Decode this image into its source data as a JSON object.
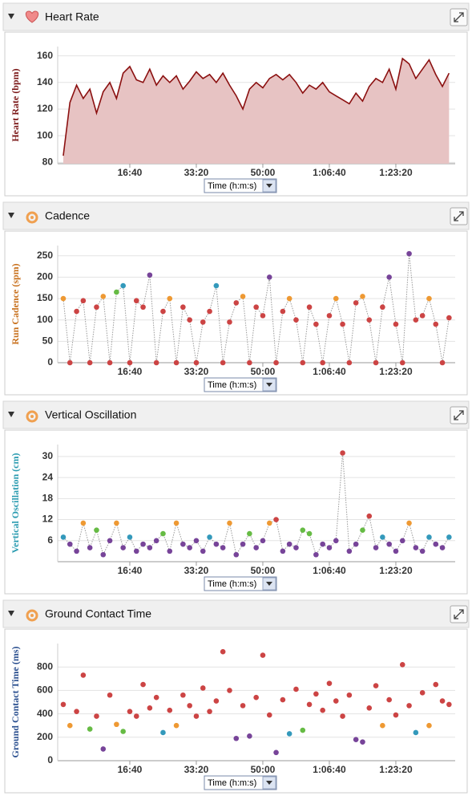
{
  "chart_data": [
    {
      "type": "area",
      "title": "Heart Rate",
      "ylabel": "Heart Rate (bpm)",
      "ylabel_color": "#7a1616",
      "x_selector": "Time (h:m:s)",
      "color": "#8b1010",
      "fill": "#e7c3c3",
      "x": [
        0,
        100,
        200,
        300,
        400,
        500,
        600,
        700,
        800,
        900,
        1000,
        1100,
        1200,
        1300,
        1400,
        1500,
        1600,
        1700,
        1800,
        1900,
        2000,
        2100,
        2200,
        2300,
        2400,
        2500,
        2600,
        2700,
        2800,
        2900,
        3000,
        3100,
        3200,
        3300,
        3400,
        3500,
        3600,
        3700,
        3800,
        3900,
        4000,
        4100,
        4200,
        4300,
        4400,
        4500,
        4600,
        4700,
        4800,
        4900,
        5000,
        5100,
        5200,
        5300,
        5400,
        5500,
        5600,
        5700,
        5800
      ],
      "values": [
        85,
        125,
        138,
        128,
        135,
        117,
        133,
        140,
        128,
        147,
        152,
        142,
        140,
        150,
        138,
        145,
        140,
        145,
        135,
        141,
        148,
        143,
        146,
        140,
        147,
        138,
        130,
        120,
        135,
        140,
        136,
        143,
        146,
        142,
        146,
        140,
        132,
        138,
        135,
        140,
        133,
        130,
        127,
        124,
        132,
        126,
        137,
        143,
        140,
        150,
        135,
        158,
        154,
        143,
        150,
        157,
        146,
        137,
        147
      ],
      "xlim": [
        -84,
        5892
      ],
      "ylim": [
        79,
        167
      ],
      "xticks": [
        {
          "value": 1000,
          "label": "16:40"
        },
        {
          "value": 2000,
          "label": "33:20"
        },
        {
          "value": 3000,
          "label": "50:00"
        },
        {
          "value": 4000,
          "label": "1:06:40"
        },
        {
          "value": 5000,
          "label": "1:23:20"
        }
      ],
      "yticks": [
        80,
        100,
        120,
        140,
        160
      ],
      "grid": true
    },
    {
      "type": "scatter",
      "title": "Cadence",
      "ylabel": "Run Cadence (spm)",
      "ylabel_color": "#c8701c",
      "x_selector": "Time (h:m:s)",
      "connect": true,
      "connector_color": "#999",
      "x": [
        0,
        100,
        200,
        300,
        400,
        500,
        600,
        700,
        800,
        900,
        1000,
        1100,
        1200,
        1300,
        1400,
        1500,
        1600,
        1700,
        1800,
        1900,
        2000,
        2100,
        2200,
        2300,
        2400,
        2500,
        2600,
        2700,
        2800,
        2900,
        3000,
        3100,
        3200,
        3300,
        3400,
        3500,
        3600,
        3700,
        3800,
        3900,
        4000,
        4100,
        4200,
        4300,
        4400,
        4500,
        4600,
        4700,
        4800,
        4900,
        5000,
        5100,
        5200,
        5300,
        5400,
        5500,
        5600,
        5700,
        5800
      ],
      "values": [
        150,
        0,
        120,
        145,
        0,
        130,
        155,
        0,
        165,
        180,
        0,
        145,
        130,
        205,
        0,
        120,
        150,
        0,
        130,
        100,
        0,
        95,
        120,
        180,
        0,
        95,
        140,
        155,
        0,
        130,
        110,
        200,
        0,
        120,
        150,
        100,
        0,
        130,
        90,
        0,
        110,
        150,
        90,
        0,
        140,
        155,
        100,
        0,
        130,
        200,
        90,
        0,
        255,
        100,
        110,
        150,
        90,
        0,
        105
      ],
      "colors": [
        "#e93",
        "#c44",
        "#c44",
        "#c44",
        "#c44",
        "#c44",
        "#e93",
        "#c44",
        "#6b4",
        "#39b",
        "#c44",
        "#c44",
        "#c44",
        "#749",
        "#c44",
        "#c44",
        "#e93",
        "#c44",
        "#c44",
        "#c44",
        "#c44",
        "#c44",
        "#c44",
        "#39b",
        "#c44",
        "#c44",
        "#c44",
        "#e93",
        "#c44",
        "#c44",
        "#c44",
        "#749",
        "#c44",
        "#c44",
        "#e93",
        "#c44",
        "#c44",
        "#c44",
        "#c44",
        "#c44",
        "#c44",
        "#e93",
        "#c44",
        "#c44",
        "#c44",
        "#e93",
        "#c44",
        "#c44",
        "#c44",
        "#749",
        "#c44",
        "#c44",
        "#749",
        "#c44",
        "#c44",
        "#e93",
        "#c44",
        "#c44",
        "#c44"
      ],
      "xlim": [
        -84,
        5892
      ],
      "ylim": [
        0,
        274
      ],
      "xticks": [
        {
          "value": 1000,
          "label": "16:40"
        },
        {
          "value": 2000,
          "label": "33:20"
        },
        {
          "value": 3000,
          "label": "50:00"
        },
        {
          "value": 4000,
          "label": "1:06:40"
        },
        {
          "value": 5000,
          "label": "1:23:20"
        }
      ],
      "yticks": [
        0,
        50,
        100,
        150,
        200,
        250
      ],
      "grid": true
    },
    {
      "type": "scatter",
      "title": "Vertical Oscillation",
      "ylabel": "Vertical Oscillation (cm)",
      "ylabel_color": "#2a9bb0",
      "x_selector": "Time (h:m:s)",
      "connect": true,
      "connector_color": "#999",
      "x": [
        0,
        100,
        200,
        300,
        400,
        500,
        600,
        700,
        800,
        900,
        1000,
        1100,
        1200,
        1300,
        1400,
        1500,
        1600,
        1700,
        1800,
        1900,
        2000,
        2100,
        2200,
        2300,
        2400,
        2500,
        2600,
        2700,
        2800,
        2900,
        3000,
        3100,
        3200,
        3300,
        3400,
        3500,
        3600,
        3700,
        3800,
        3900,
        4000,
        4100,
        4200,
        4300,
        4400,
        4500,
        4600,
        4700,
        4800,
        4900,
        5000,
        5100,
        5200,
        5300,
        5400,
        5500,
        5600,
        5700,
        5800
      ],
      "values": [
        7,
        5,
        3,
        11,
        4,
        9,
        2,
        6,
        11,
        4,
        7,
        3,
        5,
        4,
        6,
        8,
        3,
        11,
        5,
        4,
        6,
        3,
        7,
        5,
        4,
        11,
        2,
        5,
        8,
        4,
        6,
        11,
        12,
        3,
        5,
        4,
        9,
        8,
        2,
        5,
        4,
        6,
        31,
        3,
        5,
        9,
        13,
        4,
        7,
        5,
        3,
        6,
        11,
        4,
        3,
        7,
        5,
        4,
        7
      ],
      "colors": [
        "#39b",
        "#749",
        "#749",
        "#e93",
        "#749",
        "#6b4",
        "#749",
        "#749",
        "#e93",
        "#749",
        "#39b",
        "#749",
        "#749",
        "#749",
        "#749",
        "#6b4",
        "#749",
        "#e93",
        "#749",
        "#749",
        "#749",
        "#749",
        "#39b",
        "#749",
        "#749",
        "#e93",
        "#749",
        "#749",
        "#6b4",
        "#749",
        "#749",
        "#e93",
        "#c44",
        "#749",
        "#749",
        "#749",
        "#6b4",
        "#6b4",
        "#749",
        "#749",
        "#749",
        "#749",
        "#c44",
        "#749",
        "#749",
        "#6b4",
        "#c44",
        "#749",
        "#39b",
        "#749",
        "#749",
        "#749",
        "#e93",
        "#749",
        "#749",
        "#39b",
        "#749",
        "#749",
        "#39b"
      ],
      "xlim": [
        -84,
        5892
      ],
      "ylim": [
        0,
        33.4
      ],
      "xticks": [
        {
          "value": 1000,
          "label": "16:40"
        },
        {
          "value": 2000,
          "label": "33:20"
        },
        {
          "value": 3000,
          "label": "50:00"
        },
        {
          "value": 4000,
          "label": "1:06:40"
        },
        {
          "value": 5000,
          "label": "1:23:20"
        }
      ],
      "yticks": [
        6,
        12,
        18,
        24,
        30
      ],
      "grid": true
    },
    {
      "type": "scatter",
      "title": "Ground Contact Time",
      "ylabel": "Ground Contact Time (ms)",
      "ylabel_color": "#2a4f8f",
      "x_selector": "Time (h:m:s)",
      "connect": false,
      "x": [
        0,
        100,
        200,
        300,
        400,
        500,
        600,
        700,
        800,
        900,
        1000,
        1100,
        1200,
        1300,
        1400,
        1500,
        1600,
        1700,
        1800,
        1900,
        2000,
        2100,
        2200,
        2300,
        2400,
        2500,
        2600,
        2700,
        2800,
        2900,
        3000,
        3100,
        3200,
        3300,
        3400,
        3500,
        3600,
        3700,
        3800,
        3900,
        4000,
        4100,
        4200,
        4300,
        4400,
        4500,
        4600,
        4700,
        4800,
        4900,
        5000,
        5100,
        5200,
        5300,
        5400,
        5500,
        5600,
        5700,
        5800
      ],
      "values": [
        480,
        300,
        420,
        730,
        270,
        380,
        100,
        560,
        310,
        250,
        420,
        380,
        650,
        450,
        540,
        240,
        430,
        300,
        560,
        470,
        380,
        620,
        420,
        510,
        930,
        600,
        190,
        470,
        210,
        540,
        900,
        390,
        70,
        520,
        230,
        610,
        260,
        480,
        570,
        430,
        660,
        510,
        380,
        560,
        180,
        160,
        450,
        640,
        300,
        520,
        390,
        820,
        470,
        240,
        580,
        300,
        650,
        510,
        480
      ],
      "colors": [
        "#c44",
        "#e93",
        "#c44",
        "#c44",
        "#6b4",
        "#c44",
        "#749",
        "#c44",
        "#e93",
        "#6b4",
        "#c44",
        "#c44",
        "#c44",
        "#c44",
        "#c44",
        "#39b",
        "#c44",
        "#e93",
        "#c44",
        "#c44",
        "#c44",
        "#c44",
        "#c44",
        "#c44",
        "#c44",
        "#c44",
        "#749",
        "#c44",
        "#749",
        "#c44",
        "#c44",
        "#c44",
        "#749",
        "#c44",
        "#39b",
        "#c44",
        "#6b4",
        "#c44",
        "#c44",
        "#c44",
        "#c44",
        "#c44",
        "#c44",
        "#c44",
        "#749",
        "#749",
        "#c44",
        "#c44",
        "#e93",
        "#c44",
        "#c44",
        "#c44",
        "#c44",
        "#39b",
        "#c44",
        "#e93",
        "#c44",
        "#c44",
        "#c44"
      ],
      "xlim": [
        -84,
        5892
      ],
      "ylim": [
        0,
        1000
      ],
      "xticks": [
        {
          "value": 1000,
          "label": "16:40"
        },
        {
          "value": 2000,
          "label": "33:20"
        },
        {
          "value": 3000,
          "label": "50:00"
        },
        {
          "value": 4000,
          "label": "1:06:40"
        },
        {
          "value": 5000,
          "label": "1:23:20"
        }
      ],
      "yticks": [
        0,
        200,
        400,
        600,
        800
      ],
      "grid": true
    }
  ]
}
